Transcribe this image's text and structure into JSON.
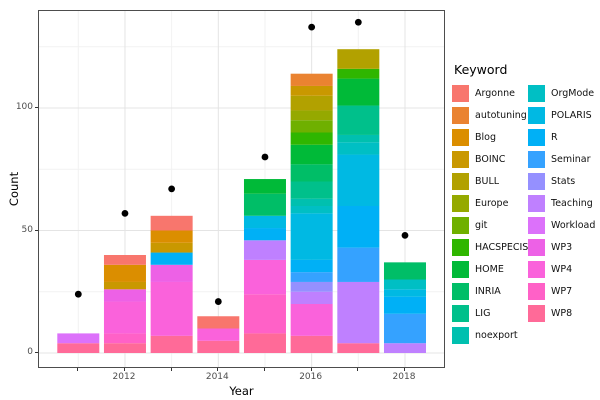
{
  "chart_data": {
    "type": "bar",
    "subtype": "stacked-bars-with-total-points",
    "title": "",
    "xlabel": "Year",
    "ylabel": "Count",
    "legend_title": "Keyword",
    "legend_position": "right",
    "grid": true,
    "x": [
      2011,
      2012,
      2013,
      2014,
      2015,
      2016,
      2017,
      2018
    ],
    "x_tick_labels": [
      "2012",
      "2014",
      "2016",
      "2018"
    ],
    "x_labeled_years": [
      2012,
      2014,
      2016,
      2018
    ],
    "y_ticks": [
      0,
      50,
      100
    ],
    "y_tick_labels": [
      "0",
      "50",
      "100"
    ],
    "y_minor": [
      25,
      75,
      125
    ],
    "ylim": [
      0,
      140
    ],
    "stack_order": "first series at top of stack",
    "point_color": "#000000",
    "points": {
      "name": "yearly-total-dot",
      "values": [
        24,
        57,
        67,
        21,
        80,
        133,
        135,
        48
      ]
    },
    "bar_totals": [
      8,
      40,
      56,
      15,
      71,
      114,
      124,
      37
    ],
    "series": [
      {
        "name": "Argonne",
        "color": "#F8766D",
        "values": [
          0,
          4,
          6,
          5,
          0,
          0,
          0,
          0
        ]
      },
      {
        "name": "autotuning",
        "color": "#EA8331",
        "values": [
          0,
          0,
          0,
          0,
          0,
          5,
          0,
          0
        ]
      },
      {
        "name": "Blog",
        "color": "#DB8E00",
        "values": [
          0,
          7,
          5,
          0,
          0,
          0,
          0,
          0
        ]
      },
      {
        "name": "BOINC",
        "color": "#C99800",
        "values": [
          0,
          3,
          4,
          0,
          0,
          4,
          0,
          0
        ]
      },
      {
        "name": "BULL",
        "color": "#B2A100",
        "values": [
          0,
          0,
          0,
          0,
          0,
          6,
          8,
          0
        ]
      },
      {
        "name": "Europe",
        "color": "#95A900",
        "values": [
          0,
          0,
          0,
          0,
          0,
          4,
          0,
          0
        ]
      },
      {
        "name": "git",
        "color": "#6FB000",
        "values": [
          0,
          0,
          0,
          0,
          0,
          5,
          0,
          0
        ]
      },
      {
        "name": "HACSPECIS",
        "color": "#2FB600",
        "values": [
          0,
          0,
          0,
          0,
          0,
          5,
          4,
          0
        ]
      },
      {
        "name": "HOME",
        "color": "#00BA38",
        "values": [
          0,
          0,
          0,
          0,
          6,
          8,
          11,
          0
        ]
      },
      {
        "name": "INRIA",
        "color": "#00BE67",
        "values": [
          0,
          0,
          0,
          0,
          9,
          7,
          0,
          7
        ]
      },
      {
        "name": "LIG",
        "color": "#00C08B",
        "values": [
          0,
          0,
          0,
          0,
          0,
          7,
          12,
          0
        ]
      },
      {
        "name": "noexport",
        "color": "#00C0AF",
        "values": [
          0,
          0,
          0,
          0,
          0,
          3,
          3,
          0
        ]
      },
      {
        "name": "OrgMode",
        "color": "#00BFC4",
        "values": [
          0,
          0,
          0,
          0,
          0,
          3,
          5,
          4
        ]
      },
      {
        "name": "POLARIS",
        "color": "#00B9E3",
        "values": [
          0,
          0,
          0,
          0,
          5,
          19,
          21,
          3
        ]
      },
      {
        "name": "R",
        "color": "#00B0F6",
        "values": [
          0,
          0,
          5,
          0,
          5,
          5,
          17,
          7
        ]
      },
      {
        "name": "Seminar",
        "color": "#35A2FF",
        "values": [
          0,
          0,
          0,
          0,
          0,
          4,
          14,
          12
        ]
      },
      {
        "name": "Stats",
        "color": "#9590FF",
        "values": [
          0,
          0,
          0,
          0,
          0,
          4,
          0,
          0
        ]
      },
      {
        "name": "Teaching",
        "color": "#BF80FF",
        "values": [
          0,
          0,
          0,
          0,
          8,
          5,
          25,
          4
        ]
      },
      {
        "name": "Workload",
        "color": "#DC71FA",
        "values": [
          4,
          0,
          0,
          0,
          0,
          0,
          0,
          0
        ]
      },
      {
        "name": "WP3",
        "color": "#ED61E6",
        "values": [
          0,
          5,
          7,
          0,
          0,
          0,
          0,
          0
        ]
      },
      {
        "name": "WP4",
        "color": "#FA62DB",
        "values": [
          0,
          13,
          22,
          5,
          14,
          13,
          0,
          0
        ]
      },
      {
        "name": "WP7",
        "color": "#FF61C7",
        "values": [
          0,
          4,
          0,
          0,
          16,
          0,
          0,
          0
        ]
      },
      {
        "name": "WP8",
        "color": "#FF6A98",
        "values": [
          4,
          4,
          7,
          5,
          8,
          7,
          4,
          0
        ]
      }
    ],
    "legend_columns": {
      "first": 12,
      "second": 11
    }
  }
}
